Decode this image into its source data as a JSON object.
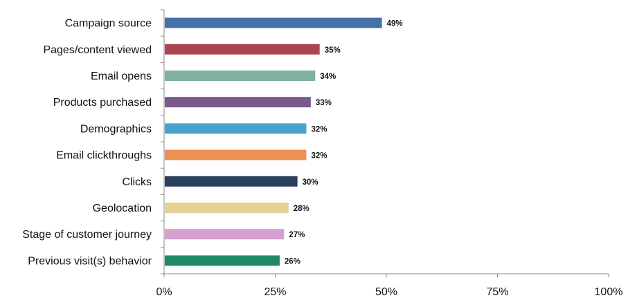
{
  "chart_data": {
    "type": "bar",
    "orientation": "horizontal",
    "categories": [
      "Campaign source",
      "Pages/content viewed",
      "Email opens",
      "Products purchased",
      "Demographics",
      "Email clickthroughs",
      "Clicks",
      "Geolocation",
      "Stage of customer journey",
      "Previous visit(s) behavior"
    ],
    "values": [
      49,
      35,
      34,
      33,
      32,
      32,
      30,
      28,
      27,
      26
    ],
    "value_labels": [
      "49%",
      "35%",
      "34%",
      "33%",
      "32%",
      "32%",
      "30%",
      "28%",
      "27%",
      "26%"
    ],
    "colors": [
      "#4472a8",
      "#aa4650",
      "#7fb29c",
      "#7a5a8e",
      "#4aa3cc",
      "#f08f54",
      "#2a3f5c",
      "#e5d194",
      "#d4a0cf",
      "#1f8a64"
    ],
    "xlim": [
      0,
      100
    ],
    "xticks": [
      0,
      25,
      50,
      75,
      100
    ],
    "xtick_labels": [
      "0%",
      "25%",
      "50%",
      "75%",
      "100%"
    ],
    "grid": false,
    "legend": "none",
    "title": "",
    "xlabel": "",
    "ylabel": ""
  }
}
